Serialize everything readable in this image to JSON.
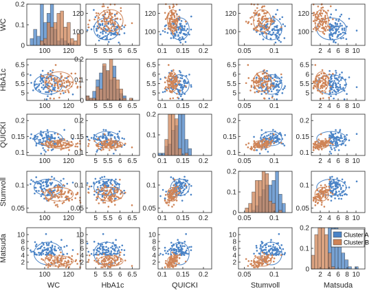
{
  "chart_data": {
    "type": "scatter-matrix",
    "variables": [
      "WC",
      "HbA1c",
      "QUICKI",
      "Stumvoll",
      "Matsuda"
    ],
    "series": [
      {
        "name": "Cluster A",
        "color": "#4A83C6",
        "center": [
          103,
          5.45,
          0.143,
          0.095,
          4.5
        ],
        "spread": [
          8,
          0.35,
          0.015,
          0.012,
          2.2
        ]
      },
      {
        "name": "Cluster B",
        "color": "#CF8457",
        "center": [
          112,
          5.6,
          0.125,
          0.08,
          2.3
        ],
        "spread": [
          8,
          0.35,
          0.008,
          0.01,
          1.0
        ]
      }
    ],
    "ranges": [
      [
        85,
        130
      ],
      [
        4.6,
        6.8
      ],
      [
        0.09,
        0.22
      ],
      [
        0.04,
        0.13
      ],
      [
        0,
        12
      ]
    ],
    "ticks": [
      [
        "100",
        "120"
      ],
      [
        "5",
        "5.5",
        "6",
        "6.5"
      ],
      [
        "0.1",
        "0.15",
        "0.2"
      ],
      [
        "0.05",
        "0.1"
      ],
      [
        "2",
        "4",
        "6",
        "8",
        "10"
      ]
    ],
    "tick_values": [
      [
        100,
        120
      ],
      [
        5,
        5.5,
        6,
        6.5
      ],
      [
        0.1,
        0.15,
        0.2
      ],
      [
        0.05,
        0.1
      ],
      [
        2,
        4,
        6,
        8,
        10
      ]
    ],
    "diag_ylim": [
      0,
      0.2
    ],
    "diag_yticks": [
      "0",
      "0.1",
      "0.2"
    ],
    "diag_ytick_values": [
      0,
      0.1,
      0.2
    ],
    "legend_position": "inside bottom-right panel, top-right",
    "grid": false
  }
}
